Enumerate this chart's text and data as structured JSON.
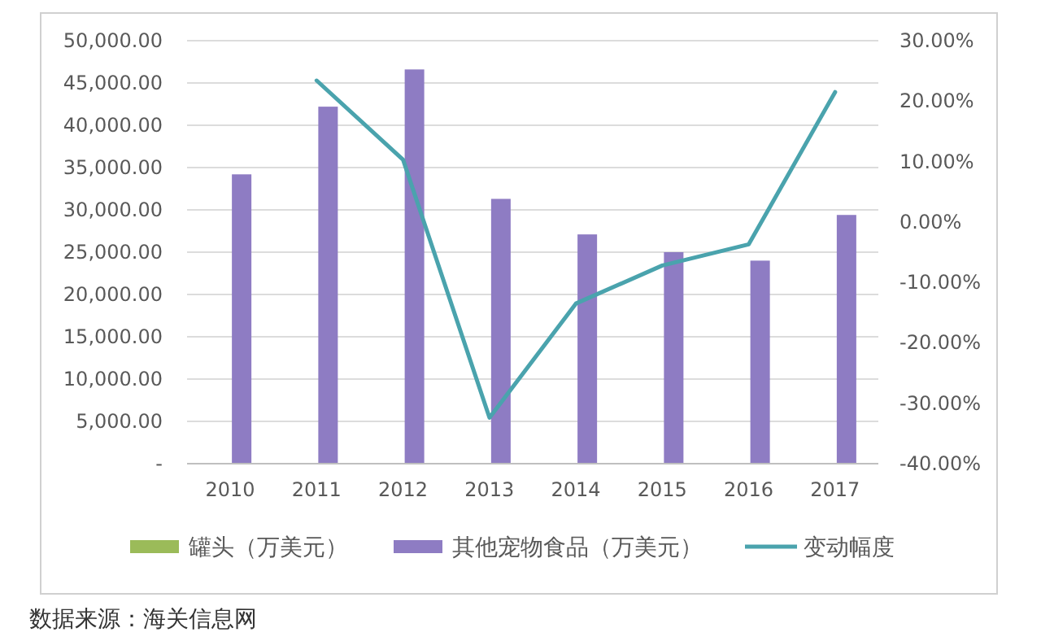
{
  "chart_data": {
    "type": "bar",
    "categories": [
      "2010",
      "2011",
      "2012",
      "2013",
      "2014",
      "2015",
      "2016",
      "2017"
    ],
    "series": [
      {
        "name": "罐头（万美元）",
        "color": "#9bbb59",
        "values": [
          null,
          null,
          null,
          null,
          null,
          null,
          null,
          null
        ]
      },
      {
        "name": "其他宠物食品（万美元）",
        "color": "#8e7cc3",
        "values": [
          34200,
          42200,
          46600,
          31300,
          27100,
          25000,
          24000,
          29400
        ]
      },
      {
        "name": "变动幅度",
        "type": "line",
        "axis": "y2",
        "color": "#4aa3ad",
        "values": [
          null,
          23.4,
          10.3,
          -32.4,
          -13.5,
          -7.2,
          -3.7,
          21.5
        ]
      }
    ],
    "ylim": [
      0,
      50000
    ],
    "yticks": [
      {
        "value": 0,
        "label": "-"
      },
      {
        "value": 5000,
        "label": "5,000.00"
      },
      {
        "value": 10000,
        "label": "10,000.00"
      },
      {
        "value": 15000,
        "label": "15,000.00"
      },
      {
        "value": 20000,
        "label": "20,000.00"
      },
      {
        "value": 25000,
        "label": "25,000.00"
      },
      {
        "value": 30000,
        "label": "30,000.00"
      },
      {
        "value": 35000,
        "label": "35,000.00"
      },
      {
        "value": 40000,
        "label": "40,000.00"
      },
      {
        "value": 45000,
        "label": "45,000.00"
      },
      {
        "value": 50000,
        "label": "50,000.00"
      }
    ],
    "y2lim": [
      -40,
      30
    ],
    "y2ticks": [
      {
        "value": -40,
        "label": "-40.00%"
      },
      {
        "value": -30,
        "label": "-30.00%"
      },
      {
        "value": -20,
        "label": "-20.00%"
      },
      {
        "value": -10,
        "label": "-10.00%"
      },
      {
        "value": 0,
        "label": "0.00%"
      },
      {
        "value": 10,
        "label": "10.00%"
      },
      {
        "value": 20,
        "label": "20.00%"
      },
      {
        "value": 30,
        "label": "30.00%"
      }
    ],
    "grid": "y",
    "legend": "bottom",
    "annotations": [
      "数据来源：海关信息网"
    ]
  }
}
